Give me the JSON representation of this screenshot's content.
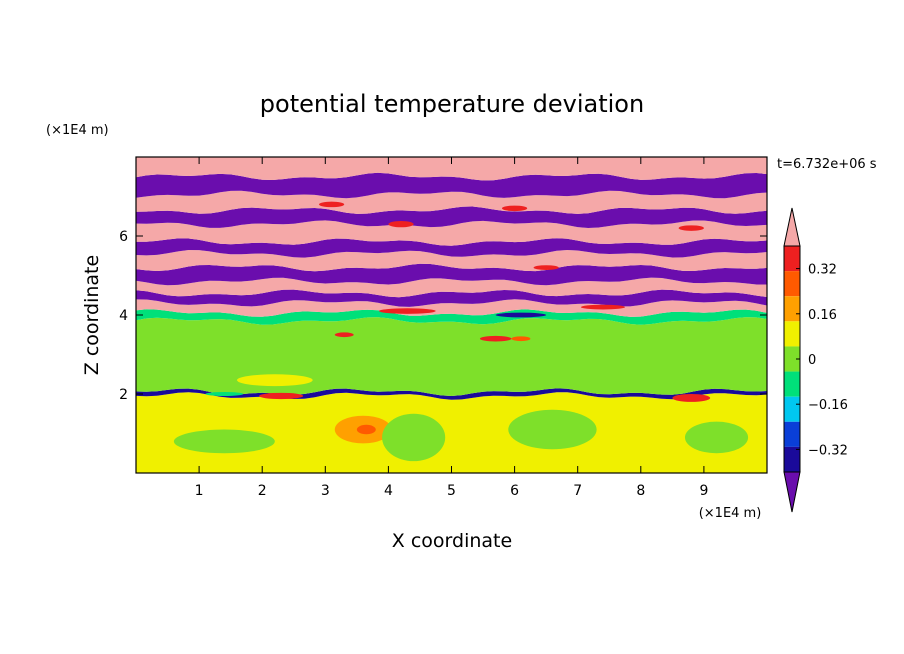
{
  "chart_data": {
    "type": "heatmap",
    "title": "potential temperature deviation",
    "xlabel": "X coordinate",
    "ylabel": "Z coordinate",
    "x_units": "(×1E4 m)",
    "y_units": "(×1E4 m)",
    "time_label": "t=6.732e+06 s",
    "xlim": [
      0,
      10
    ],
    "ylim": [
      0,
      8
    ],
    "x_ticks": [
      1,
      2,
      3,
      4,
      5,
      6,
      7,
      8,
      9
    ],
    "y_ticks": [
      2,
      4,
      6
    ],
    "colorbar": {
      "levels": [
        -0.4,
        -0.32,
        -0.24,
        -0.16,
        -0.08,
        0,
        0.08,
        0.16,
        0.24,
        0.32,
        0.4
      ],
      "labels": [
        "-0.32",
        "-0.16",
        "0",
        "0.16",
        "0.32"
      ],
      "label_values": [
        -0.32,
        -0.16,
        0,
        0.16,
        0.32
      ],
      "colors": [
        "#6a0dad",
        "#1a0a9a",
        "#0a3fd8",
        "#00c8f0",
        "#00e07a",
        "#7ee02a",
        "#f0f000",
        "#ffa000",
        "#ff5a00",
        "#ee2020",
        "#f5a8a8"
      ],
      "extend": "both"
    },
    "bands": [
      {
        "z0": 0.0,
        "z1": 1.95,
        "value": 0.04
      },
      {
        "z0": 1.95,
        "z1": 2.05,
        "value": -0.36
      },
      {
        "z0": 2.05,
        "z1": 3.85,
        "value": -0.02
      },
      {
        "z0": 3.85,
        "z1": 4.05,
        "value": -0.12
      },
      {
        "z0": 4.05,
        "z1": 4.3,
        "value": 0.44
      },
      {
        "z0": 4.3,
        "z1": 4.55,
        "value": -0.44
      },
      {
        "z0": 4.55,
        "z1": 4.85,
        "value": 0.44
      },
      {
        "z0": 4.85,
        "z1": 5.2,
        "value": -0.44
      },
      {
        "z0": 5.2,
        "z1": 5.55,
        "value": 0.44
      },
      {
        "z0": 5.55,
        "z1": 5.85,
        "value": -0.44
      },
      {
        "z0": 5.85,
        "z1": 6.3,
        "value": 0.44
      },
      {
        "z0": 6.3,
        "z1": 6.65,
        "value": -0.44
      },
      {
        "z0": 6.65,
        "z1": 7.05,
        "value": 0.44
      },
      {
        "z0": 7.05,
        "z1": 7.5,
        "value": -0.44
      },
      {
        "z0": 7.5,
        "z1": 8.0,
        "value": 0.44
      }
    ],
    "blobs": [
      {
        "x": 3.6,
        "z": 1.1,
        "rx": 0.45,
        "rz": 0.35,
        "value": 0.1
      },
      {
        "x": 3.65,
        "z": 1.1,
        "rx": 0.15,
        "rz": 0.12,
        "value": 0.22
      },
      {
        "x": 1.4,
        "z": 0.8,
        "rx": 0.8,
        "rz": 0.3,
        "value": -0.02
      },
      {
        "x": 4.4,
        "z": 0.9,
        "rx": 0.5,
        "rz": 0.6,
        "value": -0.02
      },
      {
        "x": 6.6,
        "z": 1.1,
        "rx": 0.7,
        "rz": 0.5,
        "value": -0.02
      },
      {
        "x": 9.2,
        "z": 0.9,
        "rx": 0.5,
        "rz": 0.4,
        "value": -0.02
      },
      {
        "x": 2.3,
        "z": 1.95,
        "rx": 0.35,
        "rz": 0.08,
        "value": 0.3
      },
      {
        "x": 8.8,
        "z": 1.9,
        "rx": 0.3,
        "rz": 0.1,
        "value": 0.3
      },
      {
        "x": 5.7,
        "z": 3.4,
        "rx": 0.25,
        "rz": 0.07,
        "value": 0.3
      },
      {
        "x": 6.1,
        "z": 3.4,
        "rx": 0.15,
        "rz": 0.06,
        "value": 0.22
      },
      {
        "x": 3.3,
        "z": 3.5,
        "rx": 0.15,
        "rz": 0.06,
        "value": 0.3
      },
      {
        "x": 4.3,
        "z": 4.1,
        "rx": 0.45,
        "rz": 0.07,
        "value": 0.3
      },
      {
        "x": 7.4,
        "z": 4.2,
        "rx": 0.35,
        "rz": 0.06,
        "value": 0.3
      },
      {
        "x": 6.1,
        "z": 4.0,
        "rx": 0.4,
        "rz": 0.06,
        "value": -0.36
      },
      {
        "x": 2.2,
        "z": 2.35,
        "rx": 0.6,
        "rz": 0.15,
        "value": 0.04
      },
      {
        "x": 4.2,
        "z": 6.3,
        "rx": 0.2,
        "rz": 0.08,
        "value": 0.3
      },
      {
        "x": 8.8,
        "z": 6.2,
        "rx": 0.2,
        "rz": 0.07,
        "value": 0.3
      },
      {
        "x": 3.1,
        "z": 6.8,
        "rx": 0.2,
        "rz": 0.07,
        "value": 0.3
      },
      {
        "x": 6.0,
        "z": 6.7,
        "rx": 0.2,
        "rz": 0.07,
        "value": 0.3
      },
      {
        "x": 6.5,
        "z": 5.2,
        "rx": 0.2,
        "rz": 0.06,
        "value": 0.3
      },
      {
        "x": 1.4,
        "z": 2.0,
        "rx": 0.3,
        "rz": 0.05,
        "value": -0.12
      }
    ]
  }
}
